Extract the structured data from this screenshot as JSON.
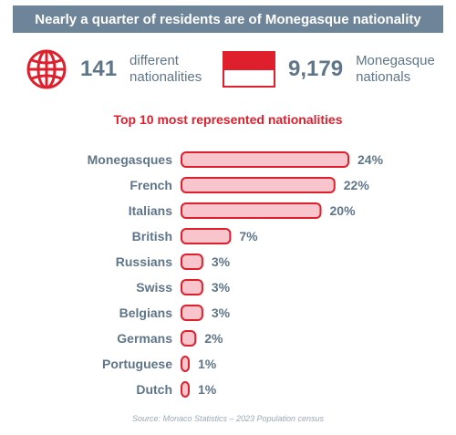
{
  "banner": {
    "title": "Nearly a quarter of residents are of Monegasque nationality"
  },
  "stats": {
    "nationalities": {
      "value": "141",
      "line1": "different",
      "line2": "nationalities",
      "icon": "globe-icon"
    },
    "nationals": {
      "value": "9,179",
      "line1": "Monegasque",
      "line2": "nationals",
      "icon": "monaco-flag-icon"
    }
  },
  "colors": {
    "accent": "#e01f2d",
    "bar_fill": "#f9c5cc",
    "text": "#5f7589",
    "banner": "#6d8499"
  },
  "chart_data": {
    "type": "bar",
    "orientation": "horizontal",
    "title": "Top 10 most represented nationalities",
    "categories": [
      "Monegasques",
      "French",
      "Italians",
      "British",
      "Russians",
      "Swiss",
      "Belgians",
      "Germans",
      "Portuguese",
      "Dutch"
    ],
    "values": [
      24,
      22,
      20,
      7,
      3,
      3,
      3,
      2,
      1,
      1
    ],
    "value_labels": [
      "24%",
      "22%",
      "20%",
      "7%",
      "3%",
      "3%",
      "3%",
      "2%",
      "1%",
      "1%"
    ],
    "unit": "%",
    "xlim": [
      0,
      24
    ],
    "grid": false,
    "legend": "none"
  },
  "source": "Source: Monaco Statistics – 2023 Population census"
}
